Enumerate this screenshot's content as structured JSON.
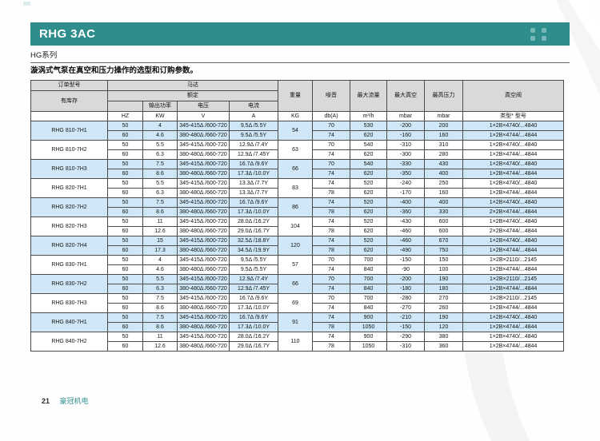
{
  "page": {
    "banner_title": "RHG 3AC",
    "series_label": "HG系列",
    "subtitle": "漩涡式气泵在真空和压力操作的选型和订购参数。",
    "footer_page_number": "21",
    "footer_brand": "豪冠机电"
  },
  "colors": {
    "teal": "#2f8e8c",
    "teal_light": "#8fc7c4",
    "row_blue": "#cfe7f6",
    "header_gray": "#d9d9d9",
    "border_dark": "#4b4b4b"
  },
  "table": {
    "headers": {
      "order_model": "订单型号",
      "in_stock": "有库存",
      "motor": "马达",
      "rated": "额定",
      "output_power": "输出功率",
      "voltage": "电压",
      "current": "电流",
      "weight": "重量",
      "noise": "噪音",
      "max_flow": "最大流量",
      "max_vacuum": "最大真空",
      "max_pressure": "最高压力",
      "vacuum_valve": "真空阀"
    },
    "units": {
      "hz": "HZ",
      "kw": "KW",
      "v": "V",
      "a": "A",
      "kg": "KG",
      "noise": "db(A)",
      "flow": "m³/h",
      "vacuum": "mbar",
      "pressure": "mbar",
      "valve": "类型* 型号"
    },
    "groups": [
      {
        "model": "RHG 810-7H1",
        "weight": "54",
        "shaded": true,
        "rows": [
          {
            "hz": "50",
            "kw": "4",
            "v": "345-415Δ /600-720",
            "a": "9.5Δ /5.5Y",
            "noise": "70",
            "flow": "530",
            "vacuum": "-200",
            "pressure": "200",
            "valve": "1×2B×4740/...4840"
          },
          {
            "hz": "60",
            "kw": "4.6",
            "v": "380-480Δ /660-720",
            "a": "9.5Δ /5.5Y",
            "noise": "74",
            "flow": "620",
            "vacuum": "-160",
            "pressure": "160",
            "valve": "1×2B×4744/...4844"
          }
        ]
      },
      {
        "model": "RHG 810-7H2",
        "weight": "63",
        "shaded": false,
        "rows": [
          {
            "hz": "50",
            "kw": "5.5",
            "v": "345-415Δ /600-720",
            "a": "12.9Δ /7.4Y",
            "noise": "70",
            "flow": "540",
            "vacuum": "-310",
            "pressure": "310",
            "valve": "1×2B×4740/...4840"
          },
          {
            "hz": "60",
            "kw": "6.3",
            "v": "380-480Δ /660-720",
            "a": "12.9Δ /7.45Y",
            "noise": "74",
            "flow": "620",
            "vacuum": "-300",
            "pressure": "280",
            "valve": "1×2B×4744/...4844"
          }
        ]
      },
      {
        "model": "RHG 810-7H3",
        "weight": "66",
        "shaded": true,
        "rows": [
          {
            "hz": "50",
            "kw": "7.5",
            "v": "345-415Δ /600-720",
            "a": "16.7Δ /9.6Y",
            "noise": "70",
            "flow": "540",
            "vacuum": "-330",
            "pressure": "430",
            "valve": "1×2B×4740/...4840"
          },
          {
            "hz": "60",
            "kw": "8.6",
            "v": "380-480Δ /660-720",
            "a": "17.3Δ /10.0Y",
            "noise": "74",
            "flow": "620",
            "vacuum": "-350",
            "pressure": "400",
            "valve": "1×2B×4744/...4844"
          }
        ]
      },
      {
        "model": "RHG 820-7H1",
        "weight": "83",
        "shaded": false,
        "rows": [
          {
            "hz": "50",
            "kw": "5.5",
            "v": "345-415Δ /600-720",
            "a": "13.3Δ /7.7Y",
            "noise": "74",
            "flow": "520",
            "vacuum": "-240",
            "pressure": "250",
            "valve": "1×2B×4740/...4840"
          },
          {
            "hz": "60",
            "kw": "6.3",
            "v": "380-480Δ /660-720",
            "a": "13.3Δ /7.7Y",
            "noise": "78",
            "flow": "620",
            "vacuum": "-170",
            "pressure": "160",
            "valve": "1×2B×4744/...4844"
          }
        ]
      },
      {
        "model": "RHG 820-7H2",
        "weight": "86",
        "shaded": true,
        "rows": [
          {
            "hz": "50",
            "kw": "7.5",
            "v": "345-415Δ /600-720",
            "a": "16.7Δ /9.6Y",
            "noise": "74",
            "flow": "520",
            "vacuum": "-400",
            "pressure": "400",
            "valve": "1×2B×4740/...4840"
          },
          {
            "hz": "60",
            "kw": "8.6",
            "v": "380-480Δ /660-720",
            "a": "17.3Δ /10.0Y",
            "noise": "78",
            "flow": "620",
            "vacuum": "-360",
            "pressure": "330",
            "valve": "2×2B×4744/...4844"
          }
        ]
      },
      {
        "model": "RHG 820-7H3",
        "weight": "104",
        "shaded": false,
        "rows": [
          {
            "hz": "50",
            "kw": "11",
            "v": "345-415Δ /600-720",
            "a": "28.0Δ /16.2Y",
            "noise": "74",
            "flow": "520",
            "vacuum": "-430",
            "pressure": "600",
            "valve": "1×2B×4740/...4840"
          },
          {
            "hz": "60",
            "kw": "12.6",
            "v": "380-480Δ /660-720",
            "a": "29.0Δ /16.7Y",
            "noise": "78",
            "flow": "620",
            "vacuum": "-460",
            "pressure": "600",
            "valve": "2×2B×4744/...4844"
          }
        ]
      },
      {
        "model": "RHG 820-7H4",
        "weight": "120",
        "shaded": true,
        "rows": [
          {
            "hz": "50",
            "kw": "15",
            "v": "345-415Δ /600-720",
            "a": "32.5Δ /18.8Y",
            "noise": "74",
            "flow": "520",
            "vacuum": "-460",
            "pressure": "670",
            "valve": "1×2B×4740/...4840"
          },
          {
            "hz": "60",
            "kw": "17.3",
            "v": "380-480Δ /660-720",
            "a": "34.5Δ /19.9Y",
            "noise": "78",
            "flow": "620",
            "vacuum": "-490",
            "pressure": "750",
            "valve": "1×2B×4744/...4844"
          }
        ]
      },
      {
        "model": "RHG 830-7H1",
        "weight": "57",
        "shaded": false,
        "rows": [
          {
            "hz": "50",
            "kw": "4",
            "v": "345-415Δ /600-720",
            "a": "9.5Δ /5.5Y",
            "noise": "70",
            "flow": "700",
            "vacuum": "-150",
            "pressure": "150",
            "valve": "1×2B×2110/...2145"
          },
          {
            "hz": "60",
            "kw": "4.6",
            "v": "380-480Δ /660-720",
            "a": "9.5Δ /5.5Y",
            "noise": "74",
            "flow": "840",
            "vacuum": "-90",
            "pressure": "100",
            "valve": "1×2B×4744/...4844"
          }
        ]
      },
      {
        "model": "RHG 830-7H2",
        "weight": "66",
        "shaded": true,
        "rows": [
          {
            "hz": "50",
            "kw": "5.5",
            "v": "345-415Δ /600-720",
            "a": "12.9Δ /7.4Y",
            "noise": "70",
            "flow": "700",
            "vacuum": "-200",
            "pressure": "190",
            "valve": "1×2B×2110/...2145"
          },
          {
            "hz": "60",
            "kw": "6.3",
            "v": "380-480Δ /660-720",
            "a": "12.9Δ /7.45Y",
            "noise": "74",
            "flow": "840",
            "vacuum": "-180",
            "pressure": "180",
            "valve": "1×2B×4744/...4844"
          }
        ]
      },
      {
        "model": "RHG 830-7H3",
        "weight": "69",
        "shaded": false,
        "rows": [
          {
            "hz": "50",
            "kw": "7.5",
            "v": "345-415Δ /600-720",
            "a": "16.7Δ /9.6Y",
            "noise": "70",
            "flow": "700",
            "vacuum": "-280",
            "pressure": "270",
            "valve": "1×2B×2110/...2145"
          },
          {
            "hz": "60",
            "kw": "8.6",
            "v": "380-480Δ /660-720",
            "a": "17.3Δ /10.0Y",
            "noise": "74",
            "flow": "840",
            "vacuum": "-270",
            "pressure": "260",
            "valve": "1×2B×4744/...4844"
          }
        ]
      },
      {
        "model": "RHG 840-7H1",
        "weight": "91",
        "shaded": true,
        "rows": [
          {
            "hz": "50",
            "kw": "7.5",
            "v": "345-415Δ /600-720",
            "a": "16.7Δ /9.6Y",
            "noise": "74",
            "flow": "900",
            "vacuum": "-210",
            "pressure": "190",
            "valve": "1×2B×4740/...4840"
          },
          {
            "hz": "60",
            "kw": "8.6",
            "v": "380-480Δ /660-720",
            "a": "17.3Δ /10.0Y",
            "noise": "78",
            "flow": "1050",
            "vacuum": "-150",
            "pressure": "120",
            "valve": "1×2B×4744/...4844"
          }
        ]
      },
      {
        "model": "RHG 840-7H2",
        "weight": "110",
        "shaded": false,
        "rows": [
          {
            "hz": "50",
            "kw": "11",
            "v": "345-415Δ /600-720",
            "a": "28.0Δ /16.2Y",
            "noise": "74",
            "flow": "900",
            "vacuum": "-290",
            "pressure": "380",
            "valve": "1×2B×4740/...4840"
          },
          {
            "hz": "60",
            "kw": "12.6",
            "v": "380-480Δ /660-720",
            "a": "29.0Δ /16.7Y",
            "noise": "78",
            "flow": "1050",
            "vacuum": "-310",
            "pressure": "360",
            "valve": "1×2B×4744/...4844"
          }
        ]
      }
    ]
  }
}
